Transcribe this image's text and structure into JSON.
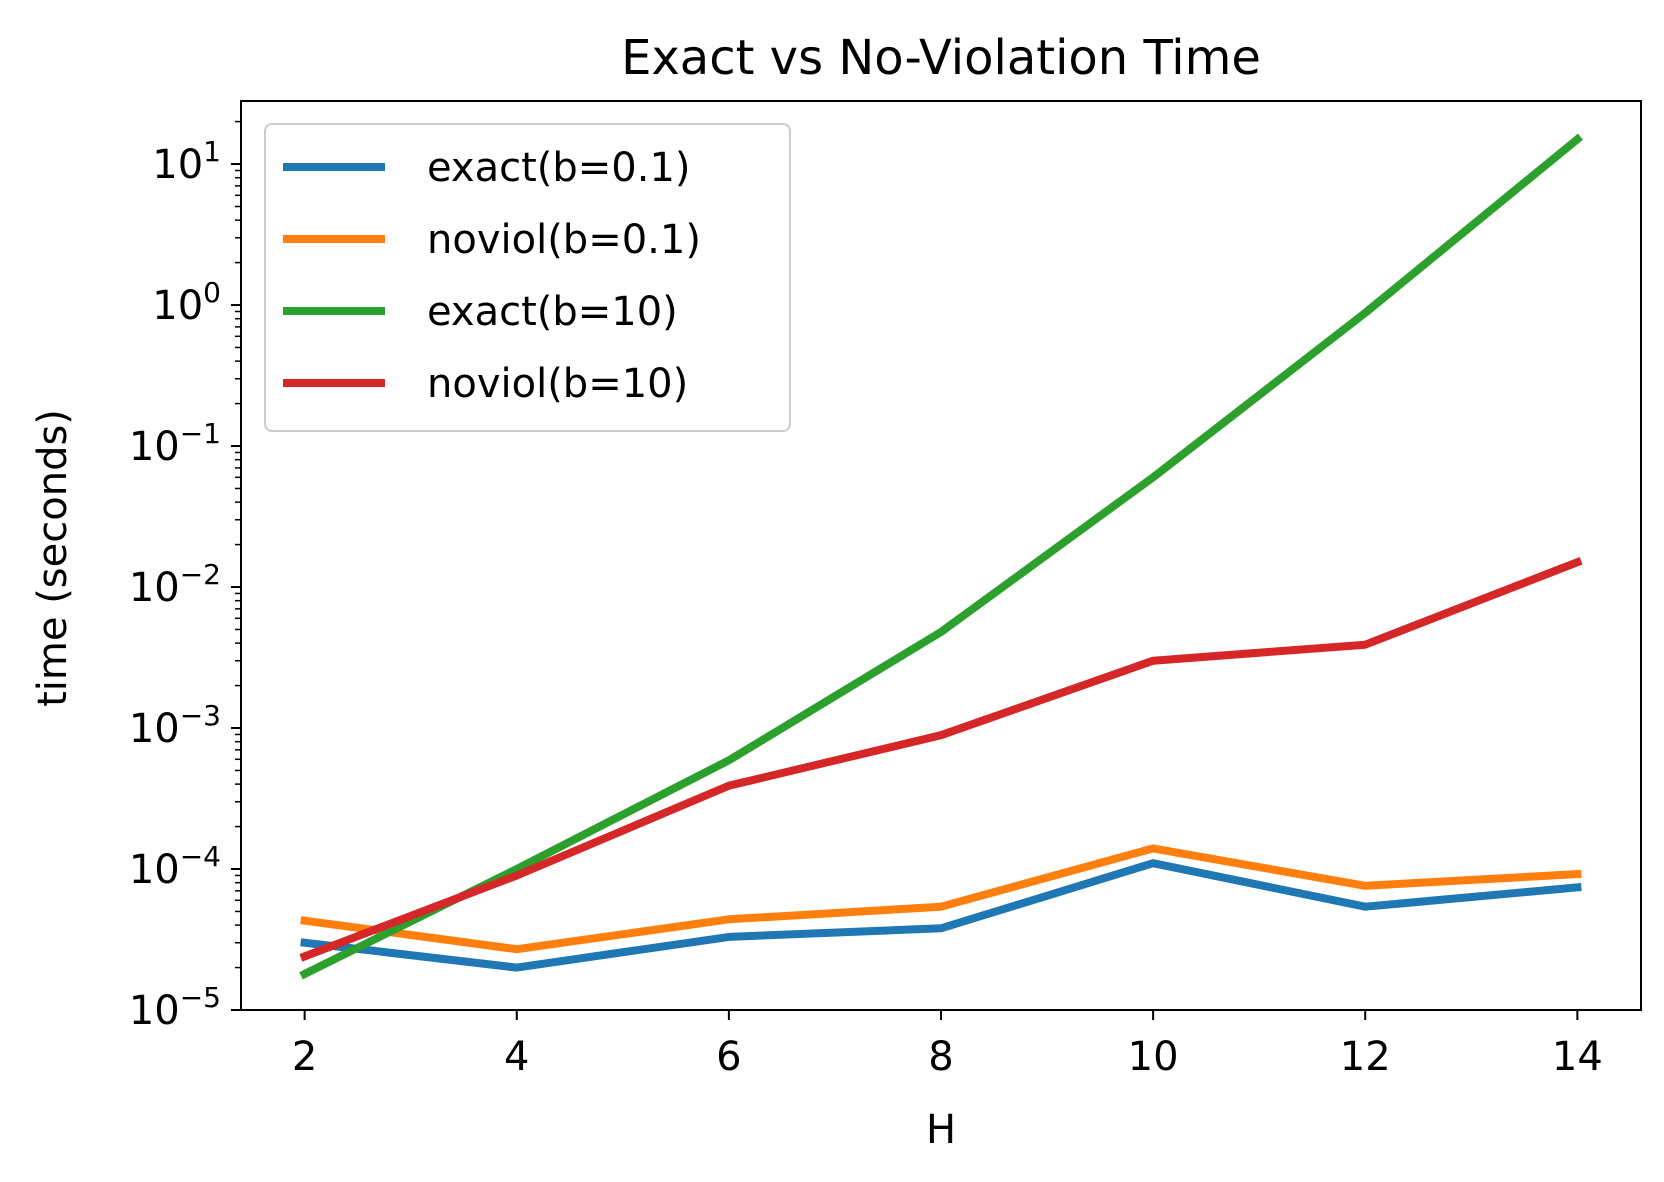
{
  "chart_data": {
    "type": "line",
    "title": "Exact vs No-Violation Time",
    "xlabel": "H",
    "ylabel": "time (seconds)",
    "x": [
      2,
      4,
      6,
      8,
      10,
      12,
      14
    ],
    "xlim": [
      1.4,
      14.6
    ],
    "ylim": [
      1e-05,
      28
    ],
    "yscale": "log",
    "xticks": [
      2,
      4,
      6,
      8,
      10,
      12,
      14
    ],
    "yticks": [
      {
        "value": 1e-05,
        "base": "10",
        "exp": "−5"
      },
      {
        "value": 0.0001,
        "base": "10",
        "exp": "−4"
      },
      {
        "value": 0.001,
        "base": "10",
        "exp": "−3"
      },
      {
        "value": 0.01,
        "base": "10",
        "exp": "−2"
      },
      {
        "value": 0.1,
        "base": "10",
        "exp": "−1"
      },
      {
        "value": 1,
        "base": "10",
        "exp": "0"
      },
      {
        "value": 10,
        "base": "10",
        "exp": "1"
      }
    ],
    "grid": false,
    "legend_position": "top-left",
    "series": [
      {
        "name": "exact(b=0.1)",
        "color": "#1f77b4",
        "values": [
          3e-05,
          2e-05,
          3.3e-05,
          3.8e-05,
          0.00011,
          5.4e-05,
          7.4e-05
        ]
      },
      {
        "name": "noviol(b=0.1)",
        "color": "#ff7f0e",
        "values": [
          4.3e-05,
          2.7e-05,
          4.4e-05,
          5.4e-05,
          0.00014,
          7.6e-05,
          9.2e-05
        ]
      },
      {
        "name": "exact(b=10)",
        "color": "#2ca02c",
        "values": [
          1.8e-05,
          0.0001,
          0.00059,
          0.0048,
          0.06,
          0.88,
          15
        ]
      },
      {
        "name": "noviol(b=10)",
        "color": "#d62728",
        "values": [
          2.4e-05,
          9e-05,
          0.00039,
          0.00089,
          0.003,
          0.0039,
          0.015
        ]
      }
    ]
  }
}
